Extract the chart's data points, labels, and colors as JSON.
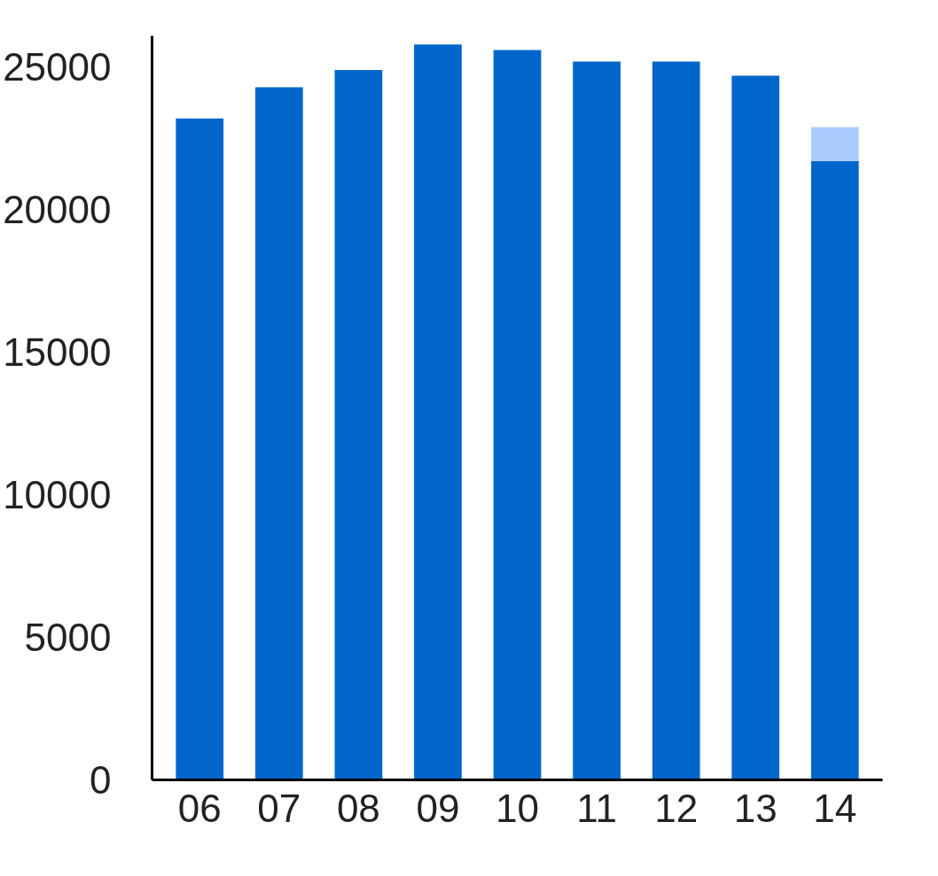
{
  "chart_data": {
    "type": "bar",
    "stacked": true,
    "categories": [
      "06",
      "07",
      "08",
      "09",
      "10",
      "11",
      "12",
      "13",
      "14"
    ],
    "series": [
      {
        "color": "#0066cc",
        "values": [
          23200,
          24300,
          24900,
          25800,
          25600,
          25200,
          25200,
          24700,
          21700
        ]
      },
      {
        "color": "#aaccff",
        "values": [
          null,
          null,
          null,
          null,
          null,
          null,
          null,
          null,
          1200
        ]
      }
    ],
    "ylim": [
      0,
      26100
    ],
    "yticks": [
      0,
      5000,
      10000,
      15000,
      20000,
      25000
    ],
    "grid": false
  }
}
